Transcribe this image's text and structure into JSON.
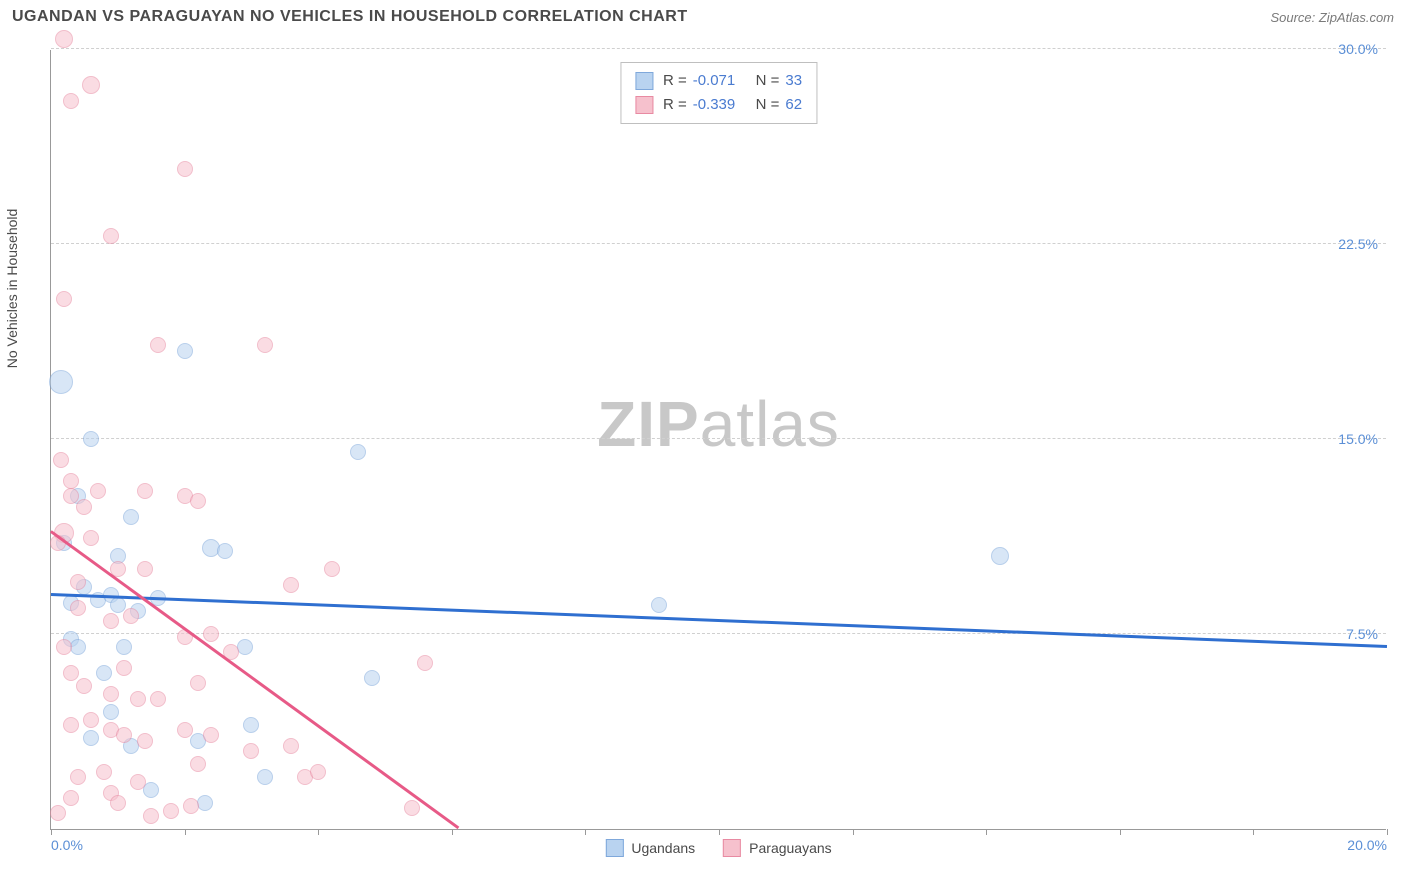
{
  "header": {
    "title": "UGANDAN VS PARAGUAYAN NO VEHICLES IN HOUSEHOLD CORRELATION CHART",
    "source": "Source: ZipAtlas.com"
  },
  "chart": {
    "type": "scatter",
    "y_axis_label": "No Vehicles in Household",
    "watermark_zip": "ZIP",
    "watermark_atlas": "atlas",
    "x_range": [
      0,
      20
    ],
    "y_range": [
      0,
      30
    ],
    "y_ticks": [
      {
        "value": 7.5,
        "label": "7.5%"
      },
      {
        "value": 15.0,
        "label": "15.0%"
      },
      {
        "value": 22.5,
        "label": "22.5%"
      },
      {
        "value": 30.0,
        "label": "30.0%"
      }
    ],
    "x_ticks": [
      {
        "value": 0,
        "label": "0.0%"
      },
      {
        "value": 2,
        "label": ""
      },
      {
        "value": 4,
        "label": ""
      },
      {
        "value": 6,
        "label": ""
      },
      {
        "value": 8,
        "label": ""
      },
      {
        "value": 10,
        "label": ""
      },
      {
        "value": 12,
        "label": ""
      },
      {
        "value": 14,
        "label": ""
      },
      {
        "value": 16,
        "label": ""
      },
      {
        "value": 18,
        "label": ""
      },
      {
        "value": 20,
        "label": "20.0%"
      }
    ],
    "series": [
      {
        "name": "Ugandans",
        "fill": "#b9d3f0",
        "stroke": "#7fa8db",
        "fill_opacity": 0.55,
        "R": "-0.071",
        "N": "33",
        "trend": {
          "color": "#2f6fd0",
          "x1": 0,
          "y1": 9.0,
          "x2": 20,
          "y2": 7.0
        },
        "points": [
          {
            "x": 0.15,
            "y": 17.2,
            "r": 12
          },
          {
            "x": 0.6,
            "y": 15.0,
            "r": 8
          },
          {
            "x": 1.2,
            "y": 12.0,
            "r": 8
          },
          {
            "x": 2.0,
            "y": 18.4,
            "r": 8
          },
          {
            "x": 0.5,
            "y": 9.3,
            "r": 8
          },
          {
            "x": 0.7,
            "y": 8.8,
            "r": 8
          },
          {
            "x": 0.9,
            "y": 9.0,
            "r": 8
          },
          {
            "x": 1.0,
            "y": 8.6,
            "r": 8
          },
          {
            "x": 1.3,
            "y": 8.4,
            "r": 8
          },
          {
            "x": 0.3,
            "y": 7.3,
            "r": 8
          },
          {
            "x": 0.4,
            "y": 7.0,
            "r": 8
          },
          {
            "x": 4.6,
            "y": 14.5,
            "r": 8
          },
          {
            "x": 2.4,
            "y": 10.8,
            "r": 9
          },
          {
            "x": 2.6,
            "y": 10.7,
            "r": 8
          },
          {
            "x": 9.1,
            "y": 8.6,
            "r": 8
          },
          {
            "x": 14.2,
            "y": 10.5,
            "r": 9
          },
          {
            "x": 0.9,
            "y": 4.5,
            "r": 8
          },
          {
            "x": 0.6,
            "y": 3.5,
            "r": 8
          },
          {
            "x": 1.2,
            "y": 3.2,
            "r": 8
          },
          {
            "x": 2.2,
            "y": 3.4,
            "r": 8
          },
          {
            "x": 2.3,
            "y": 1.0,
            "r": 8
          },
          {
            "x": 3.2,
            "y": 2.0,
            "r": 8
          },
          {
            "x": 3.0,
            "y": 4.0,
            "r": 8
          },
          {
            "x": 1.5,
            "y": 1.5,
            "r": 8
          },
          {
            "x": 4.8,
            "y": 5.8,
            "r": 8
          },
          {
            "x": 0.2,
            "y": 11.0,
            "r": 8
          },
          {
            "x": 1.0,
            "y": 10.5,
            "r": 8
          },
          {
            "x": 1.1,
            "y": 7.0,
            "r": 8
          },
          {
            "x": 0.3,
            "y": 8.7,
            "r": 8
          },
          {
            "x": 0.8,
            "y": 6.0,
            "r": 8
          },
          {
            "x": 1.6,
            "y": 8.9,
            "r": 8
          },
          {
            "x": 0.4,
            "y": 12.8,
            "r": 8
          },
          {
            "x": 2.9,
            "y": 7.0,
            "r": 8
          }
        ]
      },
      {
        "name": "Paraguayans",
        "fill": "#f6c1cd",
        "stroke": "#e88aa2",
        "fill_opacity": 0.55,
        "R": "-0.339",
        "N": "62",
        "trend": {
          "color": "#e75a87",
          "x1": 0,
          "y1": 11.4,
          "x2": 6.1,
          "y2": 0
        },
        "points": [
          {
            "x": 0.2,
            "y": 30.4,
            "r": 9
          },
          {
            "x": 0.6,
            "y": 28.6,
            "r": 9
          },
          {
            "x": 0.3,
            "y": 28.0,
            "r": 8
          },
          {
            "x": 2.0,
            "y": 25.4,
            "r": 8
          },
          {
            "x": 0.9,
            "y": 22.8,
            "r": 8
          },
          {
            "x": 0.2,
            "y": 20.4,
            "r": 8
          },
          {
            "x": 1.6,
            "y": 18.6,
            "r": 8
          },
          {
            "x": 3.2,
            "y": 18.6,
            "r": 8
          },
          {
            "x": 0.3,
            "y": 13.4,
            "r": 8
          },
          {
            "x": 0.5,
            "y": 12.4,
            "r": 8
          },
          {
            "x": 0.3,
            "y": 12.8,
            "r": 8
          },
          {
            "x": 0.2,
            "y": 11.4,
            "r": 10
          },
          {
            "x": 0.1,
            "y": 11.0,
            "r": 8
          },
          {
            "x": 0.6,
            "y": 11.2,
            "r": 8
          },
          {
            "x": 2.0,
            "y": 12.8,
            "r": 8
          },
          {
            "x": 2.2,
            "y": 12.6,
            "r": 8
          },
          {
            "x": 1.0,
            "y": 10.0,
            "r": 8
          },
          {
            "x": 1.4,
            "y": 10.0,
            "r": 8
          },
          {
            "x": 4.2,
            "y": 10.0,
            "r": 8
          },
          {
            "x": 3.6,
            "y": 9.4,
            "r": 8
          },
          {
            "x": 0.4,
            "y": 8.5,
            "r": 8
          },
          {
            "x": 0.9,
            "y": 8.0,
            "r": 8
          },
          {
            "x": 1.2,
            "y": 8.2,
            "r": 8
          },
          {
            "x": 2.0,
            "y": 7.4,
            "r": 8
          },
          {
            "x": 2.4,
            "y": 7.5,
            "r": 8
          },
          {
            "x": 0.2,
            "y": 7.0,
            "r": 8
          },
          {
            "x": 0.3,
            "y": 6.0,
            "r": 8
          },
          {
            "x": 0.5,
            "y": 5.5,
            "r": 8
          },
          {
            "x": 0.9,
            "y": 5.2,
            "r": 8
          },
          {
            "x": 1.3,
            "y": 5.0,
            "r": 8
          },
          {
            "x": 1.6,
            "y": 5.0,
            "r": 8
          },
          {
            "x": 2.2,
            "y": 5.6,
            "r": 8
          },
          {
            "x": 5.6,
            "y": 6.4,
            "r": 8
          },
          {
            "x": 0.3,
            "y": 4.0,
            "r": 8
          },
          {
            "x": 0.6,
            "y": 4.2,
            "r": 8
          },
          {
            "x": 0.9,
            "y": 3.8,
            "r": 8
          },
          {
            "x": 1.1,
            "y": 3.6,
            "r": 8
          },
          {
            "x": 1.4,
            "y": 3.4,
            "r": 8
          },
          {
            "x": 2.0,
            "y": 3.8,
            "r": 8
          },
          {
            "x": 2.4,
            "y": 3.6,
            "r": 8
          },
          {
            "x": 3.0,
            "y": 3.0,
            "r": 8
          },
          {
            "x": 3.6,
            "y": 3.2,
            "r": 8
          },
          {
            "x": 3.8,
            "y": 2.0,
            "r": 8
          },
          {
            "x": 4.0,
            "y": 2.2,
            "r": 8
          },
          {
            "x": 5.4,
            "y": 0.8,
            "r": 8
          },
          {
            "x": 0.4,
            "y": 2.0,
            "r": 8
          },
          {
            "x": 0.8,
            "y": 2.2,
            "r": 8
          },
          {
            "x": 0.9,
            "y": 1.4,
            "r": 8
          },
          {
            "x": 1.0,
            "y": 1.0,
            "r": 8
          },
          {
            "x": 1.3,
            "y": 1.8,
            "r": 8
          },
          {
            "x": 1.5,
            "y": 0.5,
            "r": 8
          },
          {
            "x": 1.8,
            "y": 0.7,
            "r": 8
          },
          {
            "x": 2.1,
            "y": 0.9,
            "r": 8
          },
          {
            "x": 2.2,
            "y": 2.5,
            "r": 8
          },
          {
            "x": 0.1,
            "y": 0.6,
            "r": 8
          },
          {
            "x": 0.3,
            "y": 1.2,
            "r": 8
          },
          {
            "x": 0.4,
            "y": 9.5,
            "r": 8
          },
          {
            "x": 0.7,
            "y": 13.0,
            "r": 8
          },
          {
            "x": 1.4,
            "y": 13.0,
            "r": 8
          },
          {
            "x": 0.15,
            "y": 14.2,
            "r": 8
          },
          {
            "x": 2.7,
            "y": 6.8,
            "r": 8
          },
          {
            "x": 1.1,
            "y": 6.2,
            "r": 8
          }
        ]
      }
    ],
    "legend_labels": {
      "R": "R =",
      "N": "N ="
    },
    "bottom_legend": [
      "Ugandans",
      "Paraguayans"
    ]
  }
}
